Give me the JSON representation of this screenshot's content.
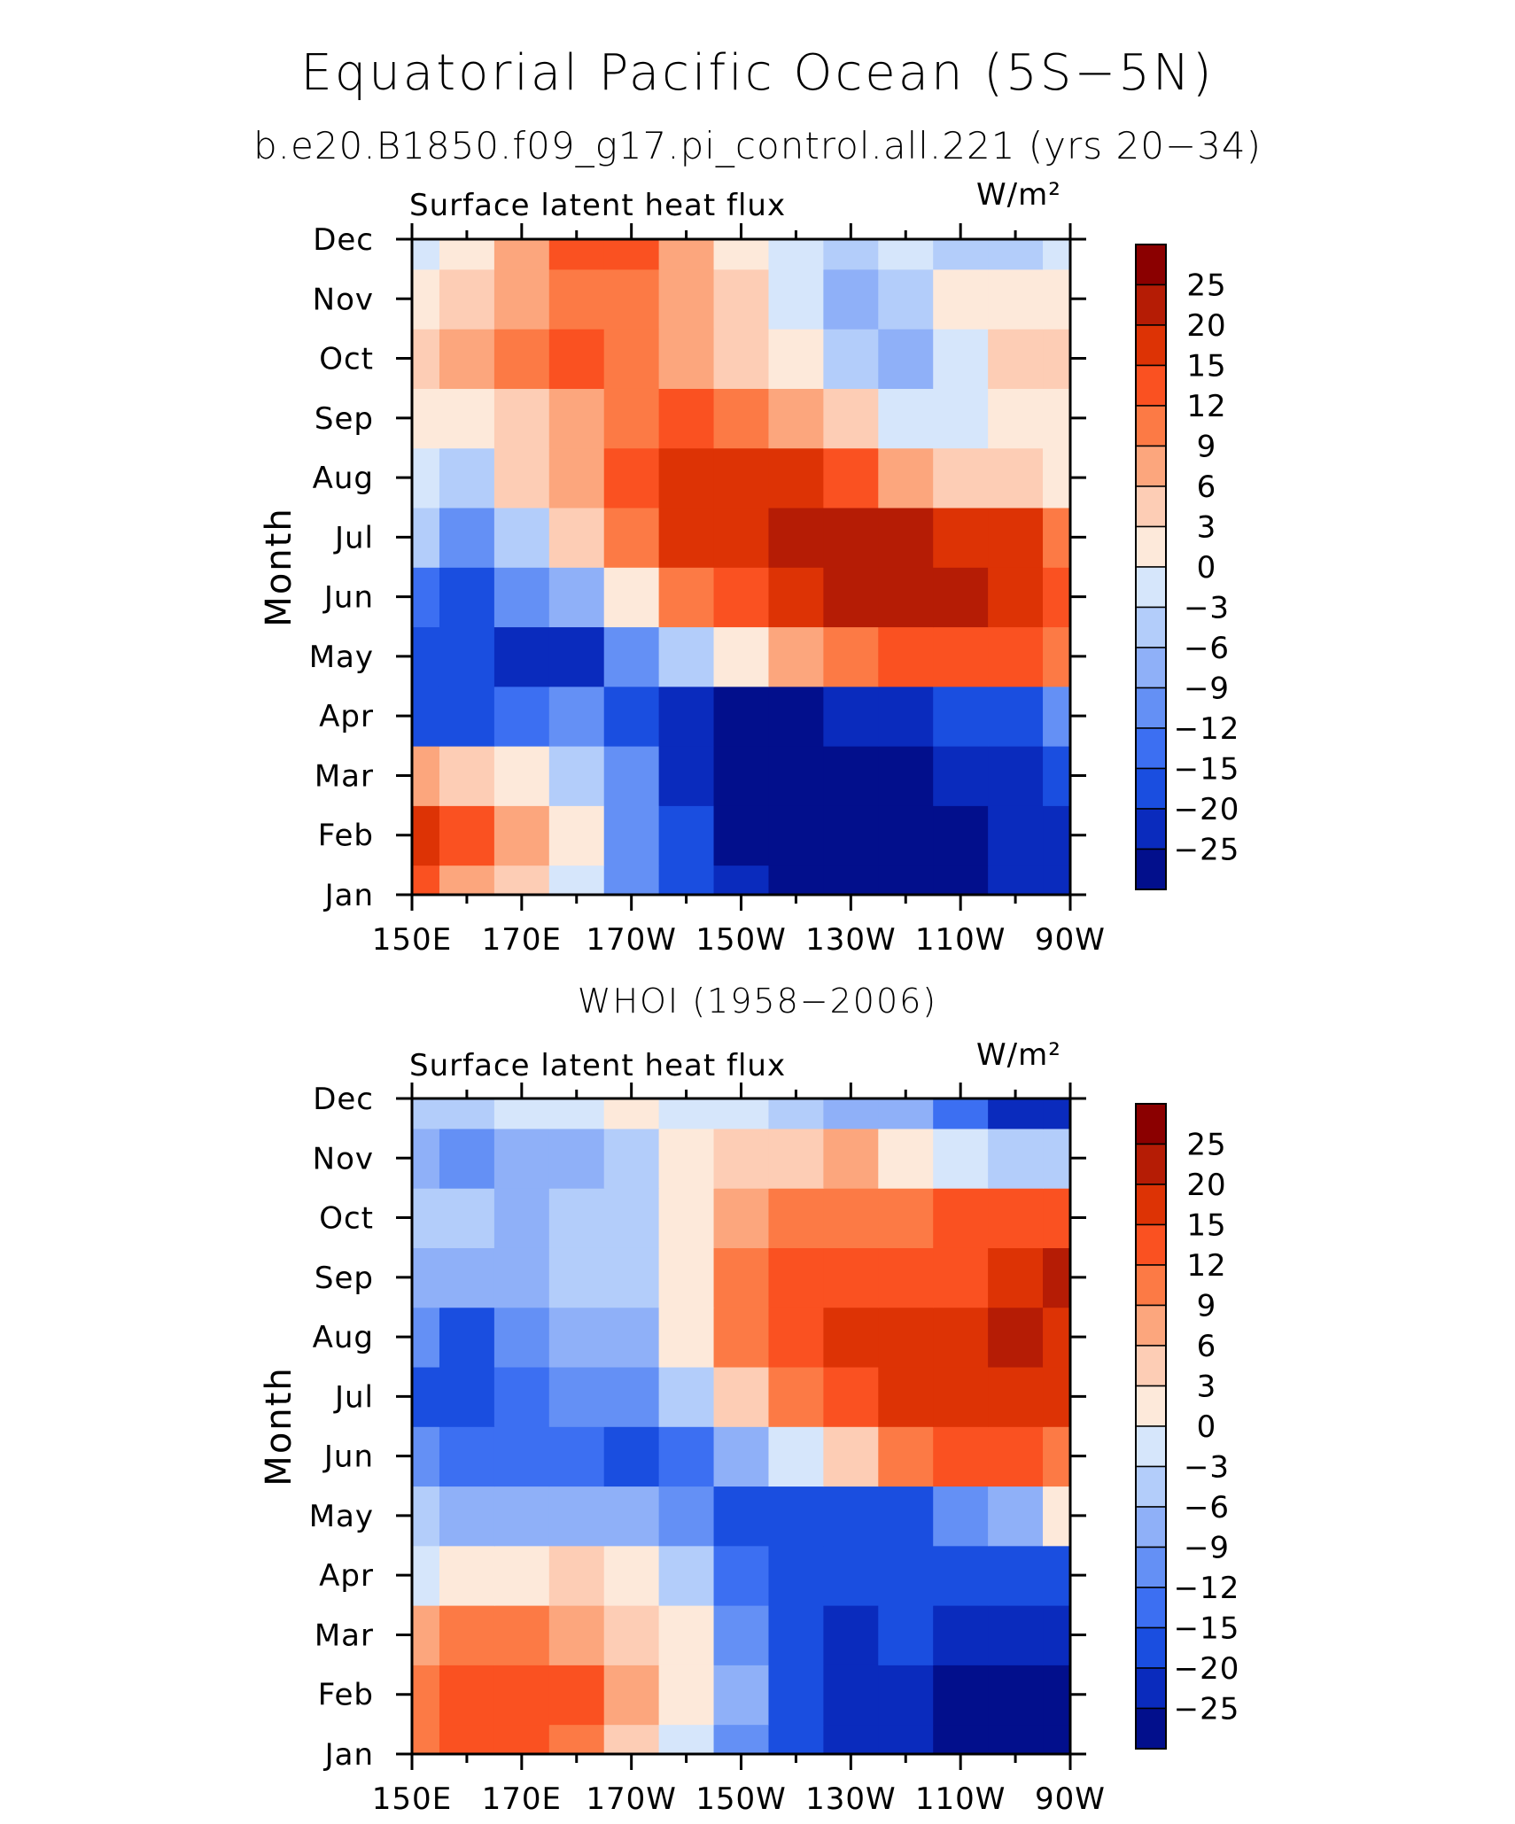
{
  "title": "Equatorial Pacific Ocean (5S−5N)",
  "subtitle": "b.e20.B1850.f09_g17.pi_control.all.221 (yrs 20−34)",
  "chart_data": [
    {
      "type": "heatmap",
      "panel_title": "",
      "variable": "Surface latent heat flux",
      "units": "W/m²",
      "ylabel": "Month",
      "x_ticks": [
        "150E",
        "170E",
        "170W",
        "150W",
        "130W",
        "110W",
        "90W"
      ],
      "y_ticks": [
        "Jan",
        "Feb",
        "Mar",
        "Apr",
        "May",
        "Jun",
        "Jul",
        "Aug",
        "Sep",
        "Oct",
        "Nov",
        "Dec"
      ],
      "colorbar_levels": [
        "25",
        "20",
        "15",
        "12",
        "9",
        "6",
        "3",
        "0",
        "−3",
        "−6",
        "−9",
        "−12",
        "−15",
        "−20",
        "−25"
      ],
      "colorbar_colors": [
        "#8b0000",
        "#b51c05",
        "#dd3305",
        "#fa5121",
        "#fc7a45",
        "#fca67d",
        "#fdcdb5",
        "#fde9da",
        "#d6e6fb",
        "#b3cdfa",
        "#8fb0f8",
        "#6490f5",
        "#3c6ff2",
        "#1a4ee0",
        "#0a2bbd",
        "#020f8c"
      ],
      "grid": false,
      "legend": "right colorbar",
      "x_grid": [
        "150E",
        "160E",
        "170E",
        "180",
        "170W",
        "160W",
        "150W",
        "140W",
        "130W",
        "120W",
        "110W",
        "100W",
        "90W"
      ],
      "y_grid": [
        "Jan",
        "Feb",
        "Mar",
        "Apr",
        "May",
        "Jun",
        "Jul",
        "Aug",
        "Sep",
        "Oct",
        "Nov",
        "Dec"
      ],
      "values": [
        [
          16,
          10,
          6,
          0,
          -8,
          -15,
          -22,
          -26,
          -26,
          -25,
          -24,
          -22,
          -20
        ],
        [
          20,
          15,
          8,
          2,
          -8,
          -16,
          -24,
          -27,
          -28,
          -27,
          -25,
          -22,
          -20
        ],
        [
          8,
          6,
          2,
          -3,
          -10,
          -18,
          -26,
          -28,
          -27,
          -24,
          -20,
          -18,
          -16
        ],
        [
          -16,
          -15,
          -12,
          -10,
          -15,
          -20,
          -24,
          -24,
          -22,
          -18,
          -16,
          -14,
          -10
        ],
        [
          -14,
          -16,
          -20,
          -18,
          -10,
          -3,
          3,
          9,
          12,
          15,
          15,
          14,
          12
        ],
        [
          -12,
          -15,
          -10,
          -5,
          4,
          12,
          17,
          20,
          24,
          26,
          24,
          20,
          16
        ],
        [
          -3,
          -8,
          -2,
          6,
          12,
          18,
          22,
          25,
          26,
          26,
          22,
          18,
          13
        ],
        [
          -1,
          -3,
          5,
          9,
          14,
          18,
          20,
          18,
          15,
          10,
          6,
          5,
          4
        ],
        [
          4,
          3,
          6,
          10,
          12,
          14,
          12,
          9,
          5,
          0,
          -1,
          2,
          3
        ],
        [
          6,
          9,
          12,
          14,
          11,
          10,
          6,
          2,
          -3,
          -5,
          0,
          5,
          6
        ],
        [
          3,
          6,
          10,
          13,
          13,
          9,
          5,
          0,
          -5,
          -3,
          2,
          4,
          4
        ],
        [
          0,
          4,
          8,
          14,
          16,
          10,
          4,
          -1,
          -2,
          -1,
          -3,
          -4,
          -1
        ]
      ]
    },
    {
      "type": "heatmap",
      "panel_title": "WHOI (1958−2006)",
      "variable": "Surface latent heat flux",
      "units": "W/m²",
      "ylabel": "Month",
      "x_ticks": [
        "150E",
        "170E",
        "170W",
        "150W",
        "130W",
        "110W",
        "90W"
      ],
      "y_ticks": [
        "Jan",
        "Feb",
        "Mar",
        "Apr",
        "May",
        "Jun",
        "Jul",
        "Aug",
        "Sep",
        "Oct",
        "Nov",
        "Dec"
      ],
      "colorbar_levels": [
        "25",
        "20",
        "15",
        "12",
        "9",
        "6",
        "3",
        "0",
        "−3",
        "−6",
        "−9",
        "−12",
        "−15",
        "−20",
        "−25"
      ],
      "colorbar_colors": [
        "#8b0000",
        "#b51c05",
        "#dd3305",
        "#fa5121",
        "#fc7a45",
        "#fca67d",
        "#fdcdb5",
        "#fde9da",
        "#d6e6fb",
        "#b3cdfa",
        "#8fb0f8",
        "#6490f5",
        "#3c6ff2",
        "#1a4ee0",
        "#0a2bbd",
        "#020f8c"
      ],
      "grid": false,
      "legend": "right colorbar",
      "x_grid": [
        "150E",
        "160E",
        "170E",
        "180",
        "170W",
        "160W",
        "150W",
        "140W",
        "130W",
        "120W",
        "110W",
        "100W",
        "90W"
      ],
      "y_grid": [
        "Jan",
        "Feb",
        "Mar",
        "Apr",
        "May",
        "Jun",
        "Jul",
        "Aug",
        "Sep",
        "Oct",
        "Nov",
        "Dec"
      ],
      "values": [
        [
          12,
          15,
          14,
          12,
          7,
          1,
          -8,
          -16,
          -20,
          -22,
          -24,
          -26,
          -27
        ],
        [
          13,
          16,
          17,
          14,
          8,
          2,
          -7,
          -15,
          -20,
          -22,
          -24,
          -24,
          -26
        ],
        [
          9,
          11,
          12,
          10,
          6,
          2,
          -10,
          -17,
          -18,
          -16,
          -18,
          -19,
          -20
        ],
        [
          1,
          3,
          4,
          5,
          2,
          -4,
          -12,
          -16,
          -16,
          -15,
          -15,
          -16,
          -15
        ],
        [
          -3,
          -5,
          -6,
          -5,
          -7,
          -10,
          -15,
          -17,
          -16,
          -14,
          -10,
          -6,
          3
        ],
        [
          -10,
          -11,
          -12,
          -13,
          -14,
          -12,
          -6,
          0,
          6,
          12,
          15,
          14,
          12
        ],
        [
          -14,
          -15,
          -12,
          -10,
          -9,
          -4,
          5,
          12,
          17,
          19,
          22,
          20,
          18
        ],
        [
          -10,
          -14,
          -10,
          -6,
          -5,
          4,
          12,
          17,
          21,
          19,
          19,
          23,
          22
        ],
        [
          -5,
          -6,
          -6,
          -4,
          -2,
          4,
          13,
          17,
          17,
          15,
          17,
          22,
          26
        ],
        [
          -4,
          -4,
          -5,
          -4,
          -2,
          4,
          10,
          13,
          13,
          12,
          14,
          16,
          15
        ],
        [
          -7,
          -8,
          -6,
          -5,
          -2,
          2,
          5,
          7,
          8,
          4,
          0,
          -3,
          -3
        ],
        [
          -2,
          -3,
          -1,
          0,
          2,
          0,
          -1,
          -2,
          -5,
          -7,
          -12,
          -18,
          -22
        ]
      ]
    }
  ]
}
